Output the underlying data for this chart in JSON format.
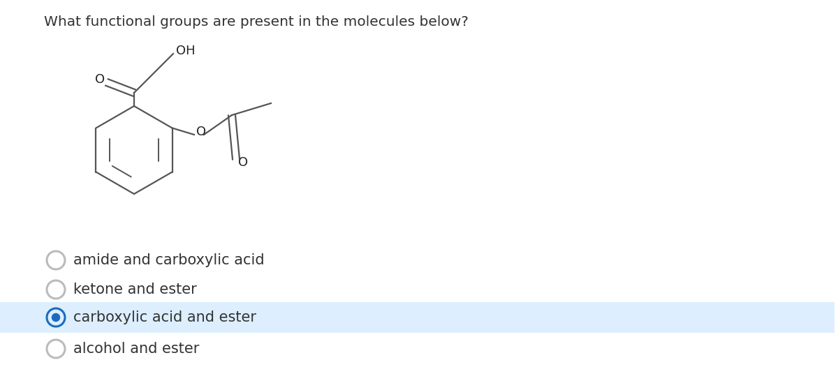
{
  "question": "What functional groups are present in the molecules below?",
  "options": [
    "amide and carboxylic acid",
    "ketone and ester",
    "carboxylic acid and ester",
    "alcohol and ester"
  ],
  "correct_index": 2,
  "selected_bg_color": "#ddeeff",
  "selected_border_color": "#1a6bbf",
  "radio_selected_color": "#1a6bbf",
  "radio_unselected_color": "#bbbbbb",
  "text_color": "#333333",
  "background_color": "#ffffff",
  "question_fontsize": 14.5,
  "option_fontsize": 15,
  "molecule_line_color": "#555555",
  "molecule_label_color": "#222222",
  "mol_lw": 1.6,
  "inner_lw": 1.4
}
